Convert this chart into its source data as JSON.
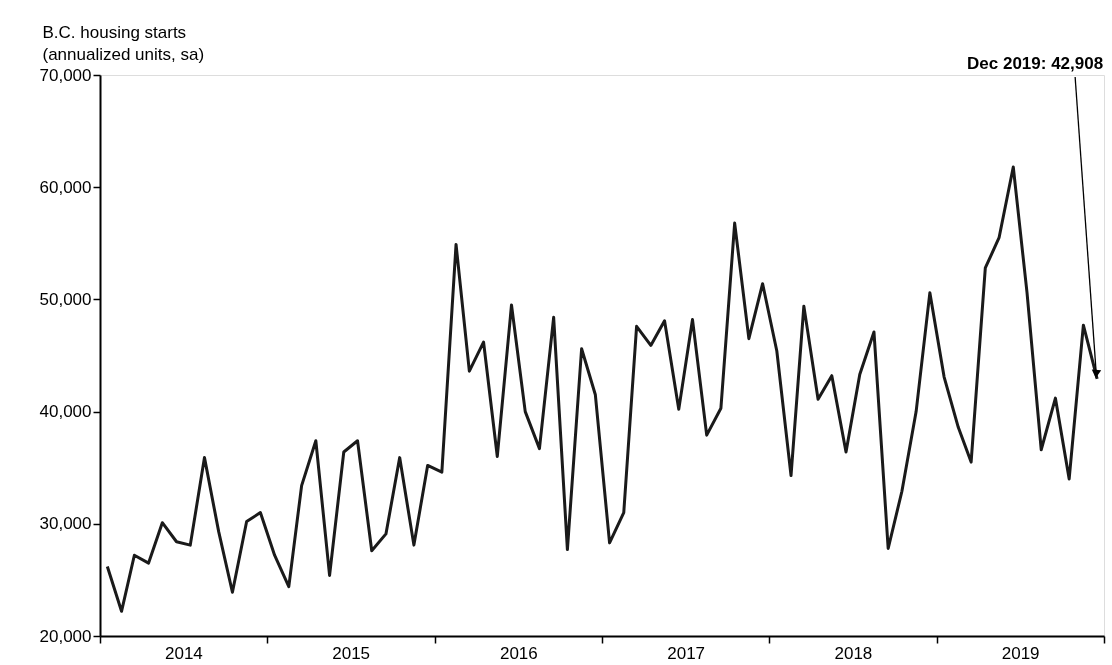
{
  "chart_data": {
    "type": "line",
    "ylabel": "B.C. housing starts\n(annualized units, sa)",
    "x": [
      "2014-01",
      "2014-02",
      "2014-03",
      "2014-04",
      "2014-05",
      "2014-06",
      "2014-07",
      "2014-08",
      "2014-09",
      "2014-10",
      "2014-11",
      "2014-12",
      "2015-01",
      "2015-02",
      "2015-03",
      "2015-04",
      "2015-05",
      "2015-06",
      "2015-07",
      "2015-08",
      "2015-09",
      "2015-10",
      "2015-11",
      "2015-12",
      "2016-01",
      "2016-02",
      "2016-03",
      "2016-04",
      "2016-05",
      "2016-06",
      "2016-07",
      "2016-08",
      "2016-09",
      "2016-10",
      "2016-11",
      "2016-12",
      "2017-01",
      "2017-02",
      "2017-03",
      "2017-04",
      "2017-05",
      "2017-06",
      "2017-07",
      "2017-08",
      "2017-09",
      "2017-10",
      "2017-11",
      "2017-12",
      "2018-01",
      "2018-02",
      "2018-03",
      "2018-04",
      "2018-05",
      "2018-06",
      "2018-07",
      "2018-08",
      "2018-09",
      "2018-10",
      "2018-11",
      "2018-12",
      "2019-01",
      "2019-02",
      "2019-03",
      "2019-04",
      "2019-05",
      "2019-06",
      "2019-07",
      "2019-08",
      "2019-09",
      "2019-10",
      "2019-11",
      "2019-12"
    ],
    "series": [
      {
        "color": "#1a1a1a",
        "values": [
          26200,
          22200,
          27200,
          26500,
          30100,
          28400,
          28100,
          35900,
          29300,
          23900,
          30200,
          31000,
          27200,
          24400,
          33400,
          37400,
          25400,
          36400,
          37400,
          27600,
          29100,
          35900,
          28100,
          35200,
          34600,
          54900,
          43600,
          46200,
          36000,
          49500,
          40000,
          36700,
          48400,
          27700,
          45600,
          41500,
          28300,
          31000,
          47600,
          45900,
          48100,
          40200,
          48200,
          37900,
          40300,
          56800,
          46500,
          51400,
          45400,
          34300,
          49400,
          41100,
          43200,
          36400,
          43300,
          47100,
          27800,
          32900,
          40000,
          50600,
          43100,
          38600,
          35500,
          52800,
          55500,
          61800,
          50600,
          36600,
          41200,
          34000,
          47700,
          42908
        ]
      }
    ],
    "xlim": [
      "2013-12-16",
      "2019-12-16"
    ],
    "xticks": [
      {
        "value": "2013-12-16",
        "label": null
      },
      {
        "value": "2014-06-16",
        "label": "2014"
      },
      {
        "value": "2014-12-16",
        "label": null
      },
      {
        "value": "2015-06-16",
        "label": "2015"
      },
      {
        "value": "2015-12-16",
        "label": null
      },
      {
        "value": "2016-06-16",
        "label": "2016"
      },
      {
        "value": "2016-12-16",
        "label": null
      },
      {
        "value": "2017-06-16",
        "label": "2017"
      },
      {
        "value": "2017-12-16",
        "label": null
      },
      {
        "value": "2018-06-16",
        "label": "2018"
      },
      {
        "value": "2018-12-16",
        "label": null
      },
      {
        "value": "2019-06-16",
        "label": "2019"
      },
      {
        "value": "2019-12-16",
        "label": null
      }
    ],
    "ylim": [
      20000,
      70000
    ],
    "yticks": [
      {
        "value": 20000,
        "label": "20,000"
      },
      {
        "value": 30000,
        "label": "30,000"
      },
      {
        "value": 40000,
        "label": "40,000"
      },
      {
        "value": 50000,
        "label": "50,000"
      },
      {
        "value": 60000,
        "label": "60,000"
      },
      {
        "value": 70000,
        "label": "70,000"
      }
    ],
    "grid": false,
    "marker": "none",
    "line_style": "solid",
    "annotations": [
      {
        "text": "Dec 2019: 42,908",
        "x": "2019-12",
        "y": 42908
      }
    ]
  }
}
